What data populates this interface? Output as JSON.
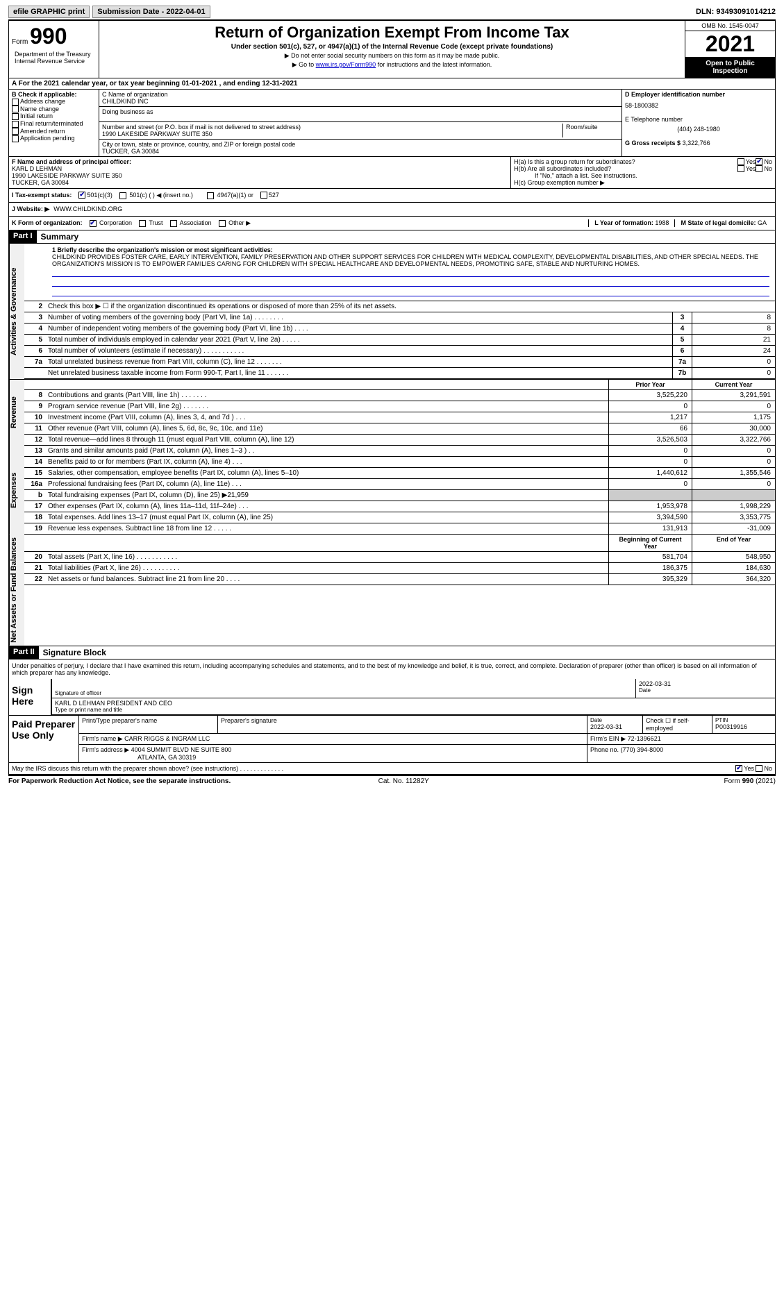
{
  "topbar": {
    "efile": "efile GRAPHIC print",
    "submission": "Submission Date - 2022-04-01",
    "dln": "DLN: 93493091014212"
  },
  "header": {
    "form_label": "Form",
    "form_num": "990",
    "title": "Return of Organization Exempt From Income Tax",
    "subtitle": "Under section 501(c), 527, or 4947(a)(1) of the Internal Revenue Code (except private foundations)",
    "note1": "▶ Do not enter social security numbers on this form as it may be made public.",
    "note2_pre": "▶ Go to ",
    "note2_link": "www.irs.gov/Form990",
    "note2_post": " for instructions and the latest information.",
    "omb": "OMB No. 1545-0047",
    "year": "2021",
    "inspect": "Open to Public Inspection",
    "dept": "Department of the Treasury Internal Revenue Service"
  },
  "row_a": "A For the 2021 calendar year, or tax year beginning 01-01-2021    , and ending 12-31-2021",
  "box_b": {
    "title": "B Check if applicable:",
    "items": [
      "Address change",
      "Name change",
      "Initial return",
      "Final return/terminated",
      "Amended return",
      "Application pending"
    ]
  },
  "box_c": {
    "name_lbl": "C Name of organization",
    "name": "CHILDKIND INC",
    "dba_lbl": "Doing business as",
    "street_lbl": "Number and street (or P.O. box if mail is not delivered to street address)",
    "street": "1990 LAKESIDE PARKWAY SUITE 350",
    "room_lbl": "Room/suite",
    "city_lbl": "City or town, state or province, country, and ZIP or foreign postal code",
    "city": "TUCKER, GA  30084"
  },
  "box_d": {
    "ein_lbl": "D Employer identification number",
    "ein": "58-1800382",
    "phone_lbl": "E Telephone number",
    "phone": "(404) 248-1980",
    "gross_lbl": "G Gross receipts $",
    "gross": "3,322,766"
  },
  "box_f": {
    "lbl": "F  Name and address of principal officer:",
    "name": "KARL D LEHMAN",
    "addr1": "1990 LAKESIDE PARKWAY SUITE 350",
    "addr2": "TUCKER, GA  30084"
  },
  "box_h": {
    "ha": "H(a)  Is this a group return for subordinates?",
    "hb": "H(b)  Are all subordinates included?",
    "hb_note": "If \"No,\" attach a list. See instructions.",
    "hc": "H(c)  Group exemption number ▶",
    "yes": "Yes",
    "no": "No"
  },
  "row_i": {
    "lbl": "I   Tax-exempt status:",
    "opt1": "501(c)(3)",
    "opt2": "501(c) (   ) ◀ (insert no.)",
    "opt3": "4947(a)(1) or",
    "opt4": "527"
  },
  "row_j": {
    "lbl": "J   Website: ▶",
    "val": "WWW.CHILDKIND.ORG"
  },
  "row_k": {
    "lbl": "K Form of organization:",
    "corp": "Corporation",
    "trust": "Trust",
    "assoc": "Association",
    "other": "Other ▶",
    "l_lbl": "L Year of formation:",
    "l_val": "1988",
    "m_lbl": "M State of legal domicile:",
    "m_val": "GA"
  },
  "part1": {
    "hdr": "Part I",
    "title": "Summary",
    "line1_lbl": "1  Briefly describe the organization's mission or most significant activities:",
    "mission": "CHILDKIND PROVIDES FOSTER CARE, EARLY INTERVENTION, FAMILY PRESERVATION AND OTHER SUPPORT SERVICES FOR CHILDREN WITH MEDICAL COMPLEXITY, DEVELOPMENTAL DISABILITIES, AND OTHER SPECIAL NEEDS. THE ORGANIZATION'S MISSION IS TO EMPOWER FAMILIES CARING FOR CHILDREN WITH SPECIAL HEALTHCARE AND DEVELOPMENTAL NEEDS, PROMOTING SAFE, STABLE AND NURTURING HOMES.",
    "line2": "Check this box ▶ ☐  if the organization discontinued its operations or disposed of more than 25% of its net assets.",
    "vtab_ag": "Activities & Governance",
    "vtab_rev": "Revenue",
    "vtab_exp": "Expenses",
    "vtab_net": "Net Assets or Fund Balances"
  },
  "gov_lines": [
    {
      "n": "3",
      "t": "Number of voting members of the governing body (Part VI, line 1a)   .    .    .    .    .    .    .    .",
      "b": "3",
      "v": "8"
    },
    {
      "n": "4",
      "t": "Number of independent voting members of the governing body (Part VI, line 1b)    .    .    .    .",
      "b": "4",
      "v": "8"
    },
    {
      "n": "5",
      "t": "Total number of individuals employed in calendar year 2021 (Part V, line 2a)    .    .    .    .    .",
      "b": "5",
      "v": "21"
    },
    {
      "n": "6",
      "t": "Total number of volunteers (estimate if necessary)    .    .    .    .    .    .    .    .    .    .    .",
      "b": "6",
      "v": "24"
    },
    {
      "n": "7a",
      "t": "Total unrelated business revenue from Part VIII, column (C), line 12    .    .    .    .    .    .    .",
      "b": "7a",
      "v": "0"
    },
    {
      "n": "",
      "t": "Net unrelated business taxable income from Form 990-T, Part I, line 11    .    .    .    .    .    .",
      "b": "7b",
      "v": "0"
    }
  ],
  "col_hdrs": {
    "prior": "Prior Year",
    "current": "Current Year",
    "boy": "Beginning of Current Year",
    "eoy": "End of Year"
  },
  "rev_lines": [
    {
      "n": "8",
      "t": "Contributions and grants (Part VIII, line 1h)    .    .    .    .    .    .    .",
      "p": "3,525,220",
      "c": "3,291,591"
    },
    {
      "n": "9",
      "t": "Program service revenue (Part VIII, line 2g)    .    .    .    .    .    .    .",
      "p": "0",
      "c": "0"
    },
    {
      "n": "10",
      "t": "Investment income (Part VIII, column (A), lines 3, 4, and 7d )    .    .    .",
      "p": "1,217",
      "c": "1,175"
    },
    {
      "n": "11",
      "t": "Other revenue (Part VIII, column (A), lines 5, 6d, 8c, 9c, 10c, and 11e)",
      "p": "66",
      "c": "30,000"
    },
    {
      "n": "12",
      "t": "Total revenue—add lines 8 through 11 (must equal Part VIII, column (A), line 12)",
      "p": "3,526,503",
      "c": "3,322,766"
    }
  ],
  "exp_lines": [
    {
      "n": "13",
      "t": "Grants and similar amounts paid (Part IX, column (A), lines 1–3 )    .    .",
      "p": "0",
      "c": "0"
    },
    {
      "n": "14",
      "t": "Benefits paid to or for members (Part IX, column (A), line 4)    .    .    .",
      "p": "0",
      "c": "0"
    },
    {
      "n": "15",
      "t": "Salaries, other compensation, employee benefits (Part IX, column (A), lines 5–10)",
      "p": "1,440,612",
      "c": "1,355,546"
    },
    {
      "n": "16a",
      "t": "Professional fundraising fees (Part IX, column (A), line 11e)    .    .    .",
      "p": "0",
      "c": "0"
    },
    {
      "n": "b",
      "t": "Total fundraising expenses (Part IX, column (D), line 25) ▶21,959",
      "p": "",
      "c": "",
      "gray": true
    },
    {
      "n": "17",
      "t": "Other expenses (Part IX, column (A), lines 11a–11d, 11f–24e)    .    .    .",
      "p": "1,953,978",
      "c": "1,998,229"
    },
    {
      "n": "18",
      "t": "Total expenses. Add lines 13–17 (must equal Part IX, column (A), line 25)",
      "p": "3,394,590",
      "c": "3,353,775"
    },
    {
      "n": "19",
      "t": "Revenue less expenses. Subtract line 18 from line 12    .    .    .    .    .",
      "p": "131,913",
      "c": "-31,009"
    }
  ],
  "net_lines": [
    {
      "n": "20",
      "t": "Total assets (Part X, line 16)    .    .    .    .    .    .    .    .    .    .    .",
      "p": "581,704",
      "c": "548,950"
    },
    {
      "n": "21",
      "t": "Total liabilities (Part X, line 26)    .    .    .    .    .    .    .    .    .    .",
      "p": "186,375",
      "c": "184,630"
    },
    {
      "n": "22",
      "t": "Net assets or fund balances. Subtract line 21 from line 20    .    .    .    .",
      "p": "395,329",
      "c": "364,320"
    }
  ],
  "part2": {
    "hdr": "Part II",
    "title": "Signature Block",
    "decl": "Under penalties of perjury, I declare that I have examined this return, including accompanying schedules and statements, and to the best of my knowledge and belief, it is true, correct, and complete. Declaration of preparer (other than officer) is based on all information of which preparer has any knowledge.",
    "sign_here": "Sign Here",
    "sig_officer": "Signature of officer",
    "sig_date": "2022-03-31",
    "date_lbl": "Date",
    "name_title": "KARL D LEHMAN  PRESIDENT AND CEO",
    "type_lbl": "Type or print name and title",
    "paid_lbl": "Paid Preparer Use Only",
    "prep_name_lbl": "Print/Type preparer's name",
    "prep_sig_lbl": "Preparer's signature",
    "prep_date": "2022-03-31",
    "check_self": "Check ☐ if self-employed",
    "ptin_lbl": "PTIN",
    "ptin": "P00319916",
    "firm_name_lbl": "Firm's name    ▶",
    "firm_name": "CARR RIGGS & INGRAM LLC",
    "firm_ein_lbl": "Firm's EIN ▶",
    "firm_ein": "72-1396621",
    "firm_addr_lbl": "Firm's address ▶",
    "firm_addr1": "4004 SUMMIT BLVD NE SUITE 800",
    "firm_addr2": "ATLANTA, GA  30319",
    "phone_lbl": "Phone no.",
    "phone": "(770) 394-8000",
    "may_irs": "May the IRS discuss this return with the preparer shown above? (see instructions)    .    .    .    .    .    .    .    .    .    .    .    .    ."
  },
  "footer": {
    "left": "For Paperwork Reduction Act Notice, see the separate instructions.",
    "mid": "Cat. No. 11282Y",
    "right_form": "Form",
    "right_num": "990",
    "right_year": "(2021)"
  }
}
